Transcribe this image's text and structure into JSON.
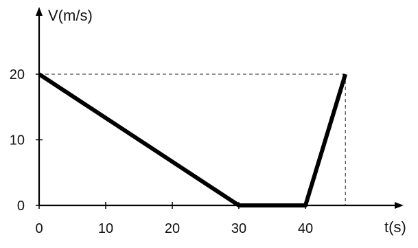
{
  "chart_data": {
    "type": "line",
    "title": "",
    "xlabel": "t(s)",
    "ylabel": "V(m/s)",
    "xlim": [
      0,
      51
    ],
    "ylim": [
      0,
      24
    ],
    "x_ticks": [
      0,
      10,
      20,
      30,
      40
    ],
    "y_ticks": [
      0,
      10,
      20
    ],
    "x_tick_labels": [
      "0",
      "10",
      "20",
      "30",
      "40"
    ],
    "y_tick_labels": [
      "0",
      "10",
      "20"
    ],
    "grid": false,
    "legend": "none",
    "series": [
      {
        "x": [
          0,
          30,
          40,
          46
        ],
        "y": [
          20,
          0,
          0,
          20
        ],
        "color": "#000000"
      }
    ],
    "reference_lines": {
      "horizontal_y": 20,
      "vertical_x": 46,
      "style": "dashed"
    }
  }
}
